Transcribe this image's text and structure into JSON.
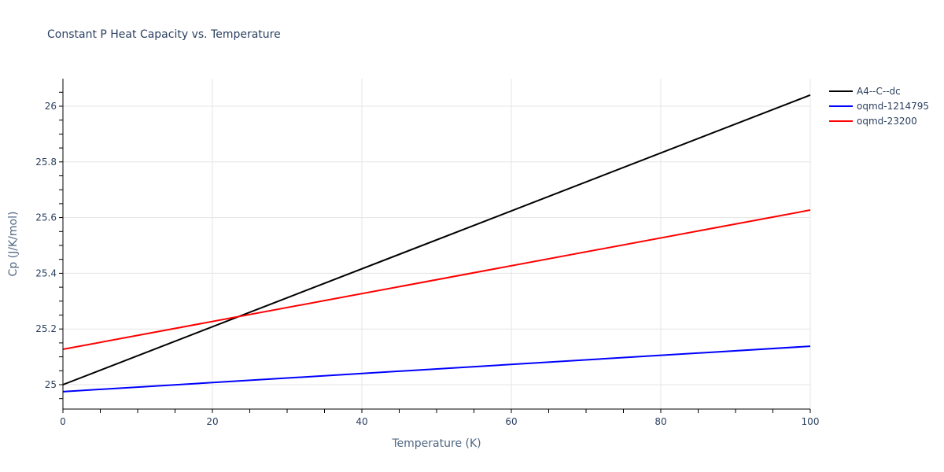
{
  "chart_data": {
    "type": "line",
    "title": "Constant P Heat Capacity vs. Temperature",
    "xlabel": "Temperature (K)",
    "ylabel": "Cp (J/K/mol)",
    "xlim": [
      0,
      100
    ],
    "ylim": [
      24.92,
      26.1
    ],
    "xticks": [
      0,
      20,
      40,
      60,
      80,
      100
    ],
    "yticks": [
      25,
      25.2,
      25.4,
      25.6,
      25.8,
      26
    ],
    "ytick_labels": [
      "25",
      "25.2",
      "25.4",
      "25.6",
      "25.8",
      "26"
    ],
    "grid": true,
    "legend_position": "right-top",
    "series": [
      {
        "name": "A4--C--dc",
        "color": "#000000",
        "x": [
          0,
          100
        ],
        "values": [
          25.0,
          26.04
        ]
      },
      {
        "name": "oqmd-1214795",
        "color": "#0000ff",
        "x": [
          0,
          100
        ],
        "values": [
          24.975,
          25.138
        ]
      },
      {
        "name": "oqmd-23200",
        "color": "#ff0000",
        "x": [
          0,
          100
        ],
        "values": [
          25.127,
          25.627
        ]
      }
    ]
  }
}
